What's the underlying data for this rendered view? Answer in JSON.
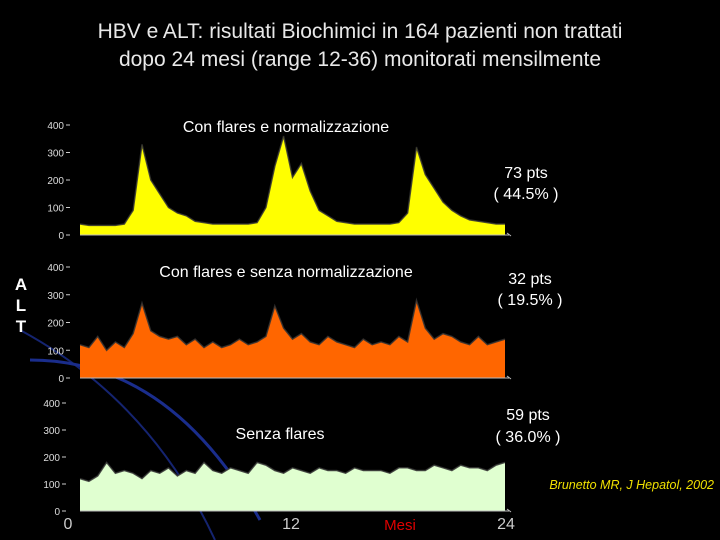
{
  "title_lines": [
    "HBV e ALT: risultati Biochimici in 164 pazienti non trattati",
    "dopo 24 mesi (range 12-36) monitorati mensilmente"
  ],
  "ylabel_letters": [
    "A",
    "L",
    "T"
  ],
  "citation": "Brunetto MR, J Hepatol, 2002",
  "colors": {
    "background": "#000000",
    "title": "#e8e8e8",
    "citation": "#f0e000",
    "decor_arc": "#1a2d8c"
  },
  "chart_data": {
    "type": "area",
    "xlabel": "Mesi",
    "x_ticks": [
      "0",
      "12",
      "24"
    ],
    "x_tick_values": [
      0,
      12,
      24
    ],
    "xlim": [
      0,
      24
    ],
    "panels": [
      {
        "title": "Con flares e normalizzazione",
        "pts": "73 pts",
        "pct": "( 44.5% )",
        "color": "#ffff00",
        "ylim": [
          0,
          400
        ],
        "yticks": [
          "0",
          "100",
          "200",
          "300",
          "400"
        ],
        "y_tick_values": [
          0,
          100,
          200,
          300,
          400
        ],
        "x": [
          0,
          0.5,
          1,
          1.5,
          2,
          2.5,
          3,
          3.5,
          4,
          4.5,
          5,
          5.5,
          6,
          6.5,
          7,
          7.5,
          8,
          8.5,
          9,
          9.5,
          10,
          10.5,
          11,
          11.5,
          12,
          12.5,
          13,
          13.5,
          14,
          14.5,
          15,
          15.5,
          16,
          16.5,
          17,
          17.5,
          18,
          18.5,
          19,
          19.5,
          20,
          20.5,
          21,
          21.5,
          22,
          22.5,
          23,
          23.5,
          24
        ],
        "values": [
          40,
          35,
          35,
          35,
          35,
          40,
          90,
          330,
          200,
          150,
          100,
          80,
          70,
          50,
          45,
          40,
          40,
          40,
          40,
          40,
          45,
          100,
          250,
          360,
          210,
          260,
          160,
          90,
          70,
          50,
          45,
          40,
          40,
          40,
          40,
          40,
          45,
          80,
          320,
          220,
          170,
          120,
          90,
          70,
          55,
          50,
          45,
          40,
          40
        ]
      },
      {
        "title": "Con flares e senza normalizzazione",
        "pts": "32 pts",
        "pct": "( 19.5% )",
        "color": "#ff6600",
        "ylim": [
          0,
          400
        ],
        "yticks": [
          "0",
          "100",
          "200",
          "300",
          "400"
        ],
        "y_tick_values": [
          0,
          100,
          200,
          300,
          400
        ],
        "x": [
          0,
          0.5,
          1,
          1.5,
          2,
          2.5,
          3,
          3.5,
          4,
          4.5,
          5,
          5.5,
          6,
          6.5,
          7,
          7.5,
          8,
          8.5,
          9,
          9.5,
          10,
          10.5,
          11,
          11.5,
          12,
          12.5,
          13,
          13.5,
          14,
          14.5,
          15,
          15.5,
          16,
          16.5,
          17,
          17.5,
          18,
          18.5,
          19,
          19.5,
          20,
          20.5,
          21,
          21.5,
          22,
          22.5,
          23,
          23.5,
          24
        ],
        "values": [
          120,
          110,
          150,
          100,
          130,
          110,
          160,
          270,
          170,
          150,
          140,
          150,
          120,
          140,
          110,
          130,
          110,
          120,
          140,
          120,
          130,
          150,
          260,
          180,
          140,
          160,
          130,
          120,
          150,
          130,
          120,
          110,
          140,
          120,
          130,
          120,
          150,
          130,
          280,
          180,
          140,
          160,
          150,
          130,
          120,
          150,
          120,
          130,
          140
        ]
      },
      {
        "title": "Senza flares",
        "pts": "59 pts",
        "pct": "( 36.0% )",
        "color": "#e0ffd0",
        "ylim": [
          0,
          400
        ],
        "yticks": [
          "0",
          "100",
          "200",
          "300",
          "400"
        ],
        "y_tick_values": [
          0,
          100,
          200,
          300,
          400
        ],
        "x": [
          0,
          0.5,
          1,
          1.5,
          2,
          2.5,
          3,
          3.5,
          4,
          4.5,
          5,
          5.5,
          6,
          6.5,
          7,
          7.5,
          8,
          8.5,
          9,
          9.5,
          10,
          10.5,
          11,
          11.5,
          12,
          12.5,
          13,
          13.5,
          14,
          14.5,
          15,
          15.5,
          16,
          16.5,
          17,
          17.5,
          18,
          18.5,
          19,
          19.5,
          20,
          20.5,
          21,
          21.5,
          22,
          22.5,
          23,
          23.5,
          24
        ],
        "values": [
          120,
          110,
          130,
          180,
          140,
          150,
          140,
          120,
          150,
          140,
          160,
          130,
          150,
          140,
          180,
          150,
          140,
          160,
          150,
          140,
          180,
          170,
          150,
          140,
          160,
          150,
          140,
          160,
          150,
          150,
          140,
          160,
          150,
          150,
          150,
          140,
          160,
          160,
          150,
          150,
          170,
          160,
          150,
          170,
          160,
          160,
          150,
          170,
          180
        ]
      }
    ]
  }
}
